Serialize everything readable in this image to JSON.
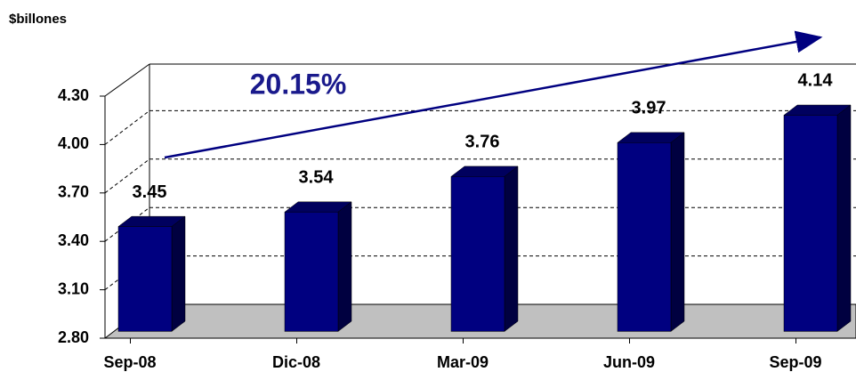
{
  "chart_data": {
    "type": "bar3d",
    "title": "$billones",
    "annotation": "20.15%",
    "categories": [
      "Sep-08",
      "Dic-08",
      "Mar-09",
      "Jun-09",
      "Sep-09"
    ],
    "values": [
      3.45,
      3.54,
      3.76,
      3.97,
      4.14
    ],
    "color": "#000080",
    "ylim": [
      2.8,
      4.3
    ],
    "yticks": [
      {
        "value": 2.8,
        "label": "2.80"
      },
      {
        "value": 3.1,
        "label": "3.10"
      },
      {
        "value": 3.4,
        "label": "3.40"
      },
      {
        "value": 3.7,
        "label": "3.70"
      },
      {
        "value": 4.0,
        "label": "4.00"
      },
      {
        "value": 4.3,
        "label": "4.30"
      }
    ],
    "grid": true
  }
}
